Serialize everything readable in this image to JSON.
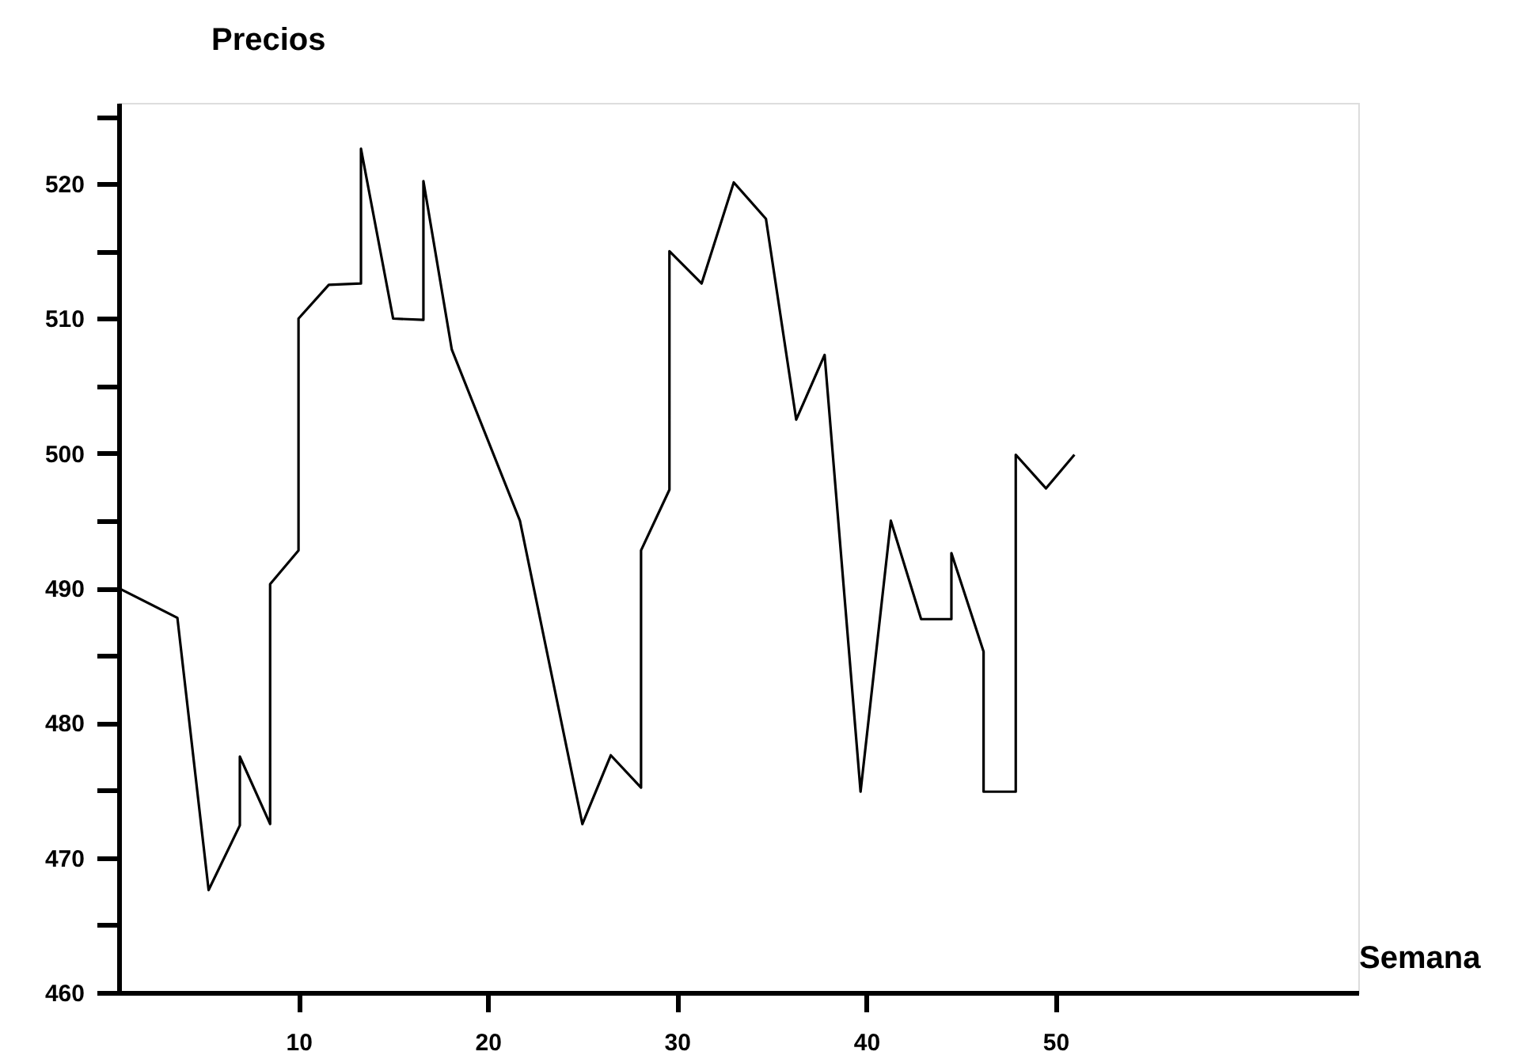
{
  "chart_data": {
    "type": "line",
    "xlabel": "Semana",
    "ylabel": "Precios",
    "x": [
      0.5,
      3.6,
      5.25,
      6.9,
      6.9,
      8.5,
      8.5,
      10,
      10,
      11.6,
      13.3,
      13.3,
      15,
      16.6,
      16.6,
      18.1,
      21.7,
      25,
      26.5,
      28.1,
      28.1,
      29.6,
      29.6,
      31.3,
      33,
      34.7,
      36.3,
      37.8,
      39.7,
      41.3,
      42.9,
      44.5,
      44.5,
      46.2,
      46.2,
      47.9,
      47.9,
      49.5,
      51
    ],
    "series": [
      {
        "color": "#000000",
        "values": [
          490,
          487.8,
          467.6,
          472.4,
          477.5,
          472.5,
          490.3,
          492.8,
          510,
          512.5,
          512.6,
          522.6,
          510,
          509.9,
          520.2,
          507.7,
          495,
          472.5,
          477.6,
          475.2,
          492.8,
          497.3,
          515,
          512.6,
          520.1,
          517.4,
          502.5,
          507.3,
          474.9,
          495,
          487.7,
          487.7,
          492.6,
          485.3,
          474.9,
          474.9,
          499.9,
          497.4,
          499.9
        ]
      }
    ],
    "xlim": [
      0.5,
      66
    ],
    "xticks": [
      10,
      20,
      30,
      40,
      50
    ],
    "ylim": [
      460,
      526
    ],
    "yticks": [
      460,
      {
        "value": 465,
        "label": null
      },
      470,
      {
        "value": 475,
        "label": null
      },
      480,
      {
        "value": 485,
        "label": null
      },
      490,
      {
        "value": 495,
        "label": null
      },
      500,
      {
        "value": 505,
        "label": null
      },
      510,
      {
        "value": 515,
        "label": null
      },
      520,
      {
        "value": 525,
        "label": null
      }
    ],
    "grid": false,
    "marker": "none",
    "line_style": "solid"
  }
}
